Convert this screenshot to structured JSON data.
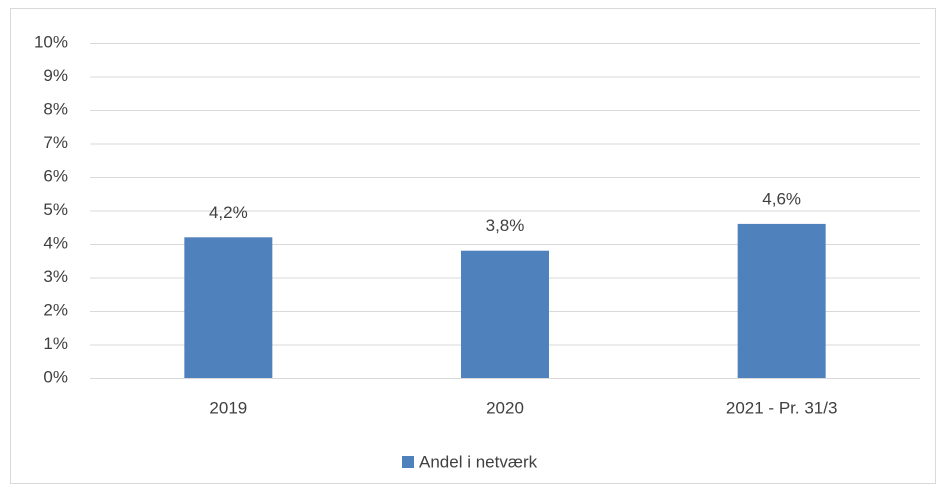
{
  "chart_data": {
    "type": "bar",
    "categories": [
      "2019",
      "2020",
      "2021 - Pr. 31/3"
    ],
    "series": [
      {
        "name": "Andel i netværk",
        "color": "#4f81bd",
        "values": [
          4.2,
          3.8,
          4.6
        ],
        "value_labels": [
          "4,2%",
          "3,8%",
          "4,6%"
        ]
      }
    ],
    "ylim": [
      0,
      10
    ],
    "yticks": [
      {
        "value": 0,
        "label": "0%"
      },
      {
        "value": 1,
        "label": "1%"
      },
      {
        "value": 2,
        "label": "2%"
      },
      {
        "value": 3,
        "label": "3%"
      },
      {
        "value": 4,
        "label": "4%"
      },
      {
        "value": 5,
        "label": "5%"
      },
      {
        "value": 6,
        "label": "6%"
      },
      {
        "value": 7,
        "label": "7%"
      },
      {
        "value": 8,
        "label": "8%"
      },
      {
        "value": 9,
        "label": "9%"
      },
      {
        "value": 10,
        "label": "10%"
      }
    ],
    "grid": true,
    "legend": "bottom"
  }
}
